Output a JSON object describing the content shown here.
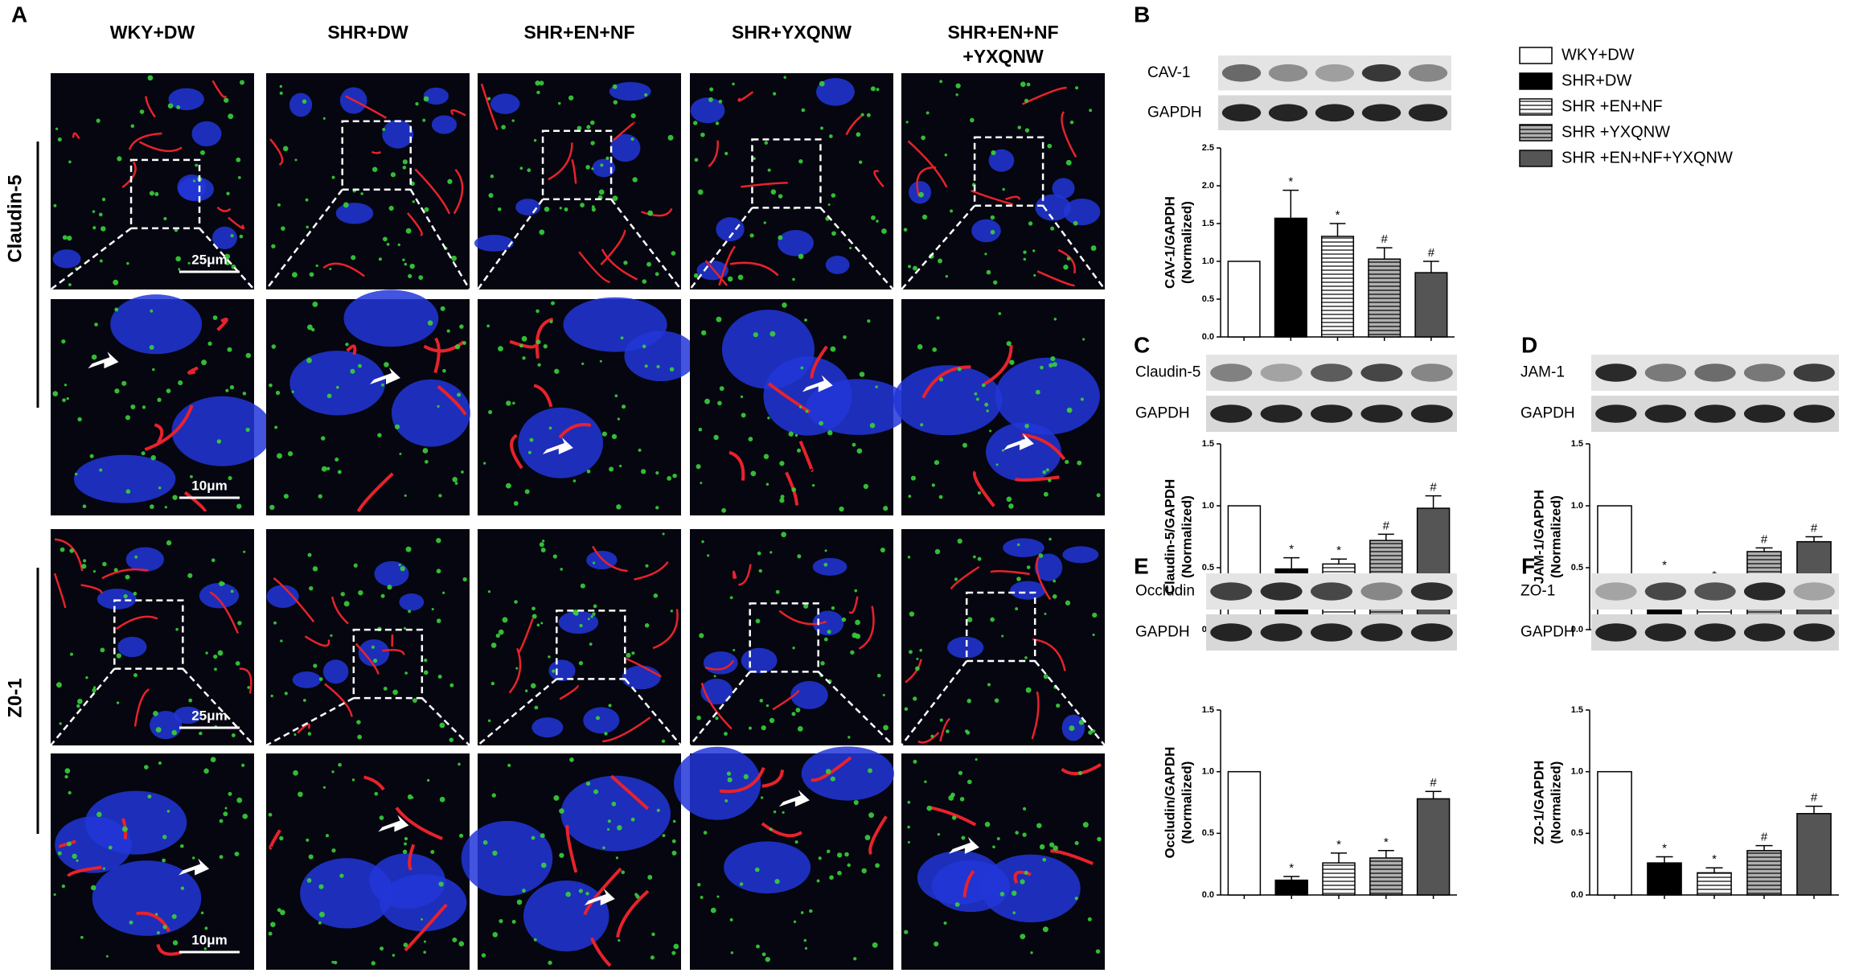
{
  "panel_a": {
    "letter": "A",
    "column_headers": [
      [
        "WKY+DW"
      ],
      [
        "SHR+DW"
      ],
      [
        "SHR+EN+NF"
      ],
      [
        "SHR+YXQNW"
      ],
      [
        "SHR+EN+NF",
        "+YXQNW"
      ]
    ],
    "row_labels": [
      "Claudin-5",
      "Z0-1"
    ],
    "scale_bars": [
      "25μm",
      "10μm",
      "25μm",
      "10μm"
    ]
  },
  "legend": {
    "items": [
      {
        "name": "WKY+DW",
        "color": "#ffffff",
        "hatch": false
      },
      {
        "name": "SHR+DW",
        "color": "#000000",
        "hatch": false
      },
      {
        "name": "SHR +EN+NF",
        "color": "#ffffff",
        "hatch": true
      },
      {
        "name": "SHR +YXQNW",
        "color": "#b0b0b0",
        "hatch": true
      },
      {
        "name": "SHR +EN+NF+YXQNW",
        "color": "#555555",
        "hatch": false
      }
    ]
  },
  "chart_data": [
    {
      "type": "bar",
      "letter": "B",
      "blot_labels": [
        "CAV-1",
        "GAPDH"
      ],
      "ylabel": [
        "CAV-1/GAPDH",
        "(Normalized)"
      ],
      "values": [
        1.0,
        1.57,
        1.33,
        1.03,
        0.85
      ],
      "errors": [
        0,
        0.37,
        0.17,
        0.15,
        0.15
      ],
      "markers": [
        null,
        "*",
        "*",
        "#",
        "#"
      ],
      "ylim": [
        0,
        2.5
      ],
      "yticks": [
        {
          "value": 0,
          "label": "0.0"
        },
        0.5,
        {
          "value": 1,
          "label": "1.0"
        },
        1.5,
        {
          "value": 2,
          "label": "2.0"
        },
        2.5
      ]
    },
    {
      "type": "bar",
      "letter": "C",
      "blot_labels": [
        "Claudin-5",
        "GAPDH"
      ],
      "ylabel": [
        "Claudin-5/GAPDH",
        "(Normalized)"
      ],
      "values": [
        1.0,
        0.49,
        0.53,
        0.72,
        0.98
      ],
      "errors": [
        0,
        0.09,
        0.04,
        0.05,
        0.1
      ],
      "markers": [
        null,
        "*",
        "*",
        "#",
        "#"
      ],
      "ylim": [
        0,
        1.5
      ],
      "yticks": [
        {
          "value": 0,
          "label": "0.0"
        },
        0.5,
        {
          "value": 1,
          "label": "1.0"
        },
        1.5
      ]
    },
    {
      "type": "bar",
      "letter": "D",
      "blot_labels": [
        "JAM-1",
        "GAPDH"
      ],
      "ylabel": [
        "JAM-1/GAPDH",
        "(Normalized)"
      ],
      "values": [
        1.0,
        0.38,
        0.31,
        0.63,
        0.71
      ],
      "errors": [
        0,
        0.07,
        0.06,
        0.03,
        0.04
      ],
      "markers": [
        null,
        "*",
        "*",
        "#",
        "#"
      ],
      "ylim": [
        0,
        1.5
      ],
      "yticks": [
        {
          "value": 0,
          "label": "0.0"
        },
        0.5,
        {
          "value": 1,
          "label": "1.0"
        },
        1.5
      ]
    },
    {
      "type": "bar",
      "letter": "E",
      "blot_labels": [
        "Occludin",
        "GAPDH"
      ],
      "ylabel": [
        "Occludin/GAPDH",
        "(Normalized)"
      ],
      "values": [
        1.0,
        0.12,
        0.26,
        0.3,
        0.78
      ],
      "errors": [
        0,
        0.03,
        0.08,
        0.06,
        0.06
      ],
      "markers": [
        null,
        "*",
        "*",
        "*",
        "#"
      ],
      "ylim": [
        0,
        1.5
      ],
      "yticks": [
        {
          "value": 0,
          "label": "0.0"
        },
        0.5,
        {
          "value": 1,
          "label": "1.0"
        },
        1.5
      ]
    },
    {
      "type": "bar",
      "letter": "F",
      "blot_labels": [
        "ZO-1",
        "GAPDH"
      ],
      "ylabel": [
        "ZO-1/GAPDH",
        "(Normalized)"
      ],
      "values": [
        1.0,
        0.26,
        0.18,
        0.36,
        0.66
      ],
      "errors": [
        0,
        0.05,
        0.04,
        0.04,
        0.06
      ],
      "markers": [
        null,
        "*",
        "*",
        "#",
        "#"
      ],
      "ylim": [
        0,
        1.5
      ],
      "yticks": [
        {
          "value": 0,
          "label": "0.0"
        },
        0.5,
        {
          "value": 1,
          "label": "1.0"
        },
        1.5
      ]
    }
  ]
}
